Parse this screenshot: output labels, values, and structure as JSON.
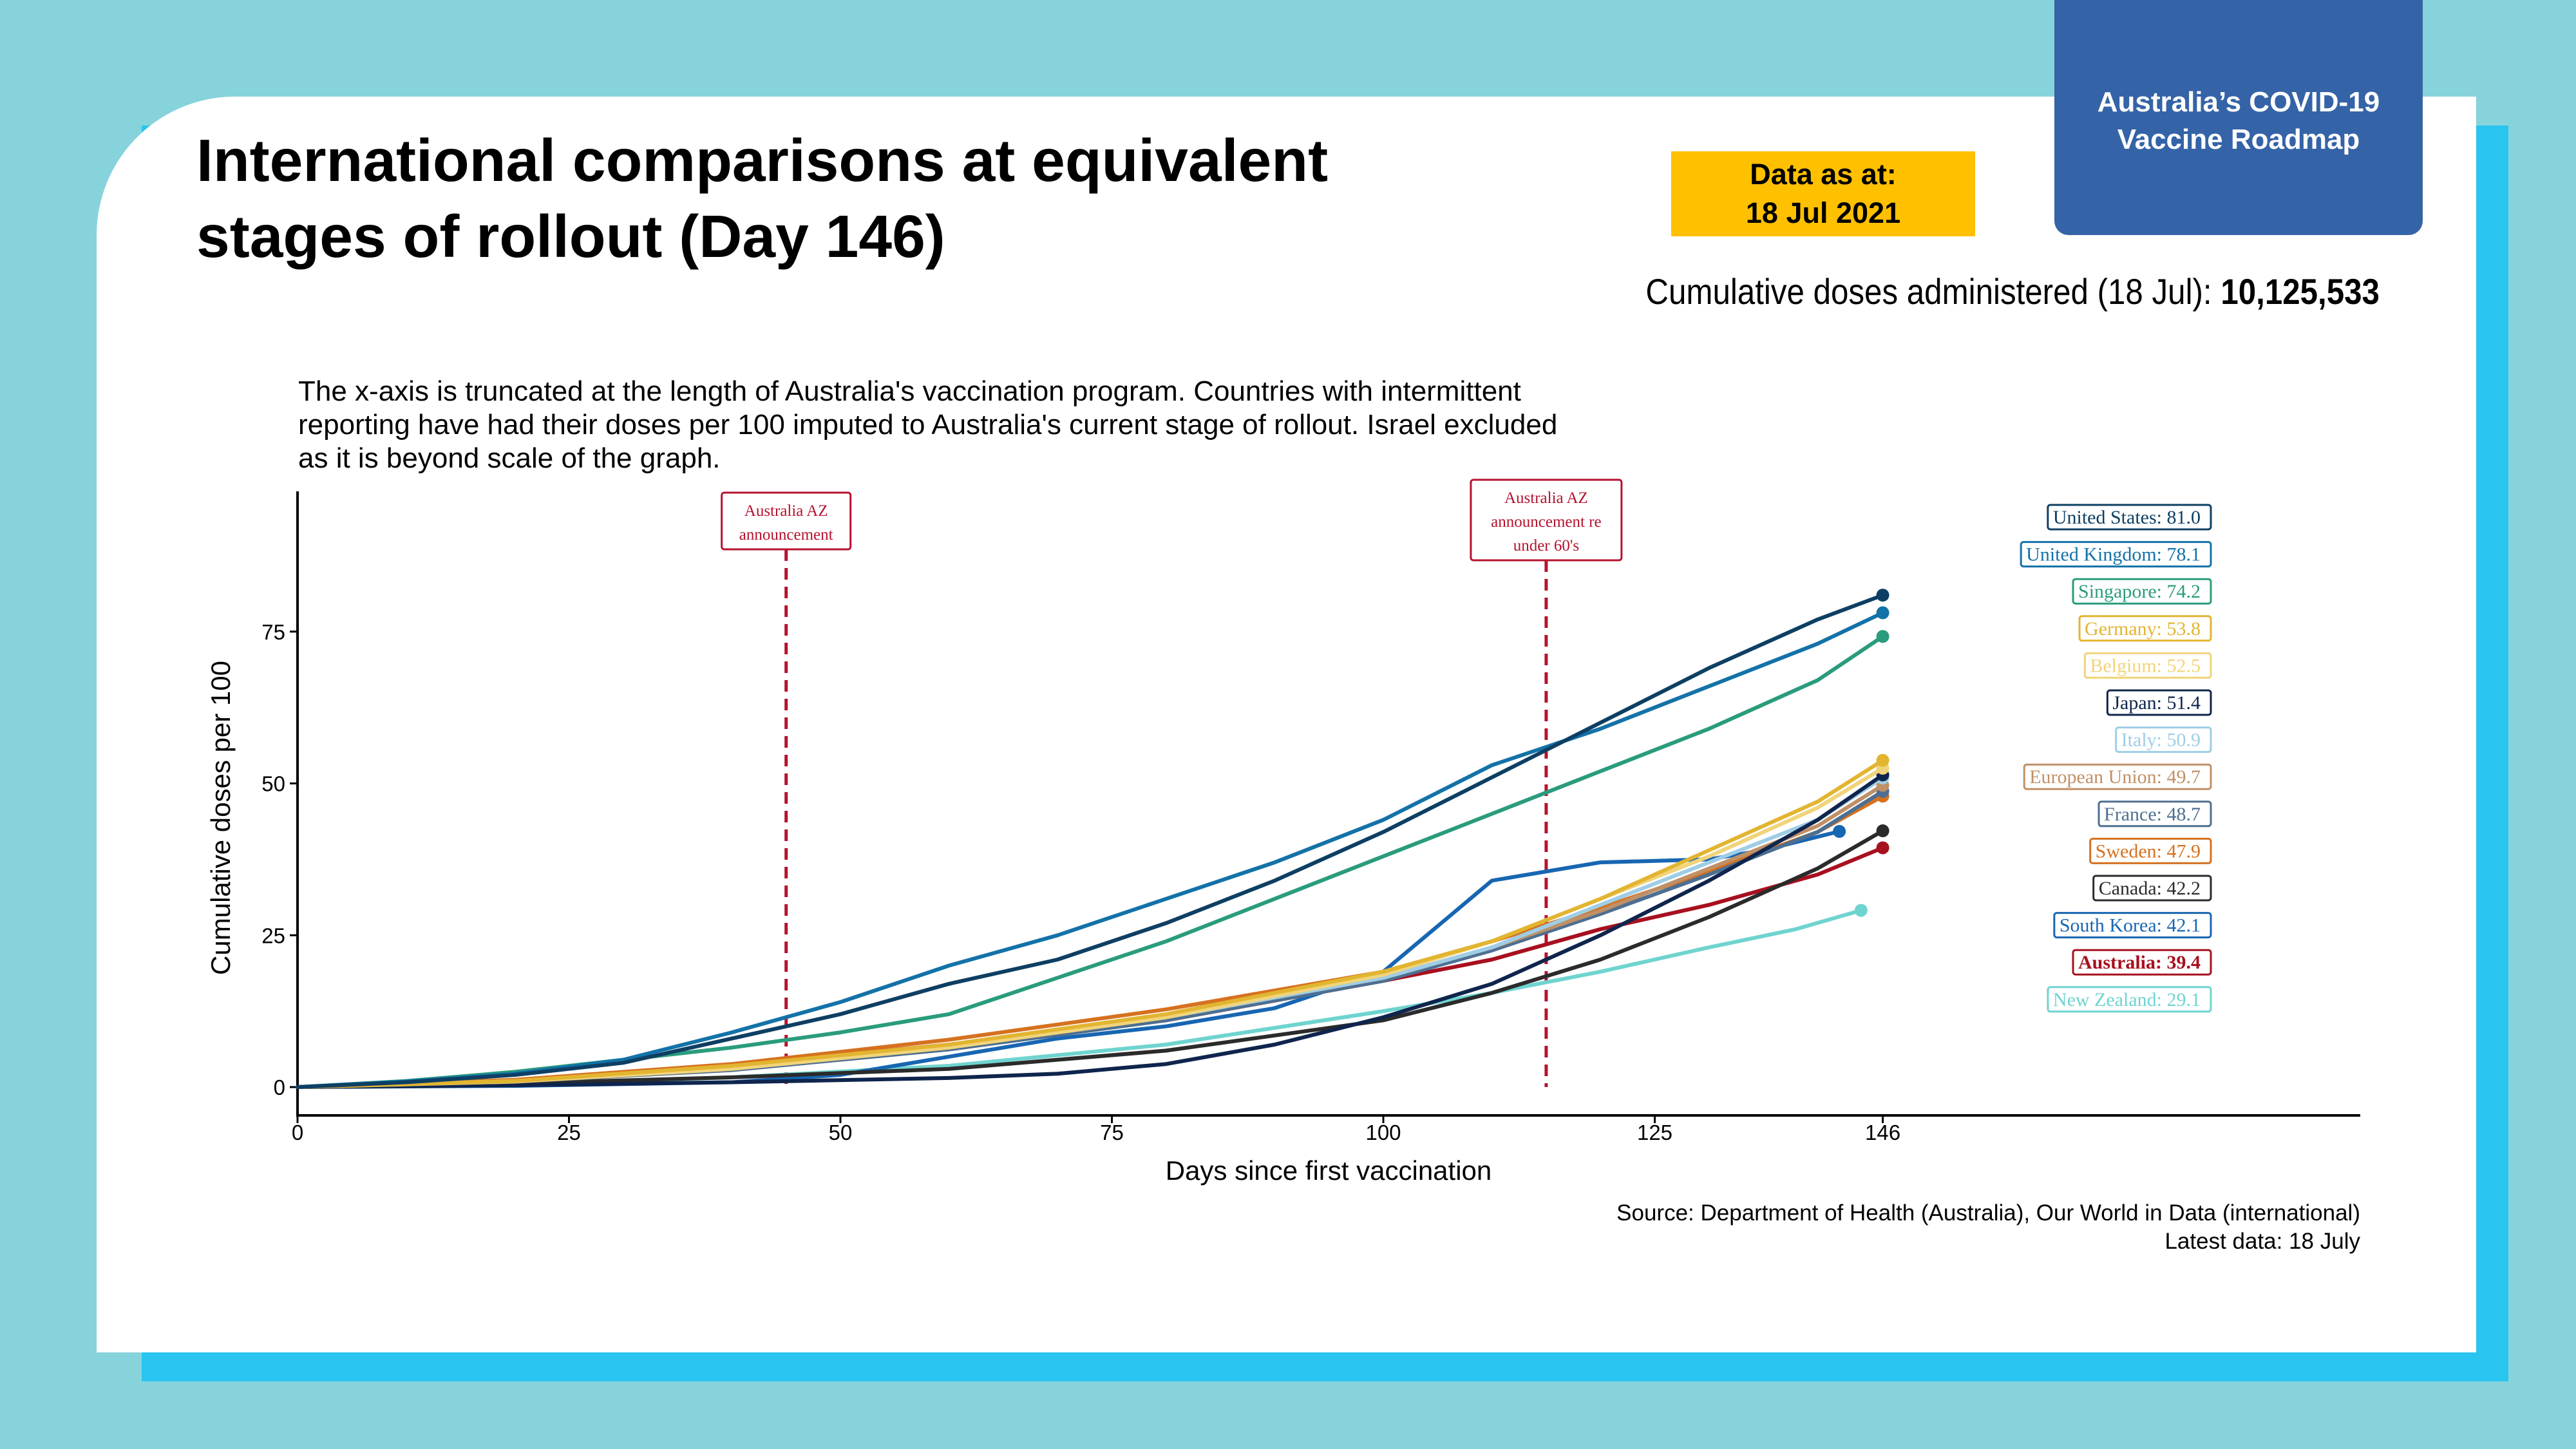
{
  "title_lines": [
    "International comparisons at equivalent",
    "stages of rollout (Day 146)"
  ],
  "brand": {
    "line1": "Australia’s COVID-19",
    "line2": "Vaccine Roadmap"
  },
  "date_box": {
    "line1": "Data as at:",
    "line2": "18 Jul 2021"
  },
  "cumulative": {
    "label": "Cumulative doses administered (18 Jul):",
    "value": "10,125,533"
  },
  "note_lines": [
    "The x-axis is truncated at the length of Australia's vaccination program. Countries with intermittent",
    "reporting have had their doses per 100 imputed to Australia's current stage of rollout. Israel excluded",
    "as it is beyond scale of the graph."
  ],
  "source_lines": [
    "Source: Department of Health (Australia), Our World in Data (international)",
    "Latest data: 18 July"
  ],
  "colors": {
    "accent_yellow": "#ffc000",
    "brand_blue": "#3563a7",
    "announcement_red": "#b5122e"
  },
  "chart_data": {
    "type": "line",
    "xlabel": "Days since first vaccination",
    "ylabel": "Cumulative doses per 100",
    "xlim": [
      0,
      190
    ],
    "ylim": [
      0,
      95
    ],
    "xticks": [
      0,
      25,
      50,
      75,
      100,
      125,
      146
    ],
    "yticks": [
      0,
      25,
      50,
      75
    ],
    "grid": false,
    "legend": "right",
    "annotations": [
      {
        "x": 45,
        "lines": [
          "Australia AZ",
          "announcement"
        ]
      },
      {
        "x": 115,
        "lines": [
          "Australia AZ",
          "announcement re",
          "under 60's"
        ]
      }
    ],
    "series": [
      {
        "name": "United States",
        "label": "United States: 81.0",
        "color": "#0e3f63",
        "bold": false,
        "points": [
          [
            0,
            0
          ],
          [
            10,
            0.8
          ],
          [
            20,
            2
          ],
          [
            30,
            4
          ],
          [
            40,
            8
          ],
          [
            50,
            12
          ],
          [
            60,
            17
          ],
          [
            70,
            21
          ],
          [
            80,
            27
          ],
          [
            90,
            34
          ],
          [
            100,
            42
          ],
          [
            110,
            51
          ],
          [
            120,
            60
          ],
          [
            130,
            69
          ],
          [
            140,
            77
          ],
          [
            146,
            81.0
          ]
        ]
      },
      {
        "name": "United Kingdom",
        "label": "United Kingdom: 78.1",
        "color": "#1372a8",
        "bold": false,
        "points": [
          [
            0,
            0
          ],
          [
            10,
            0.9
          ],
          [
            20,
            2.2
          ],
          [
            30,
            4.5
          ],
          [
            40,
            9
          ],
          [
            50,
            14
          ],
          [
            60,
            20
          ],
          [
            70,
            25
          ],
          [
            80,
            31
          ],
          [
            90,
            37
          ],
          [
            100,
            44
          ],
          [
            110,
            53
          ],
          [
            120,
            59
          ],
          [
            130,
            66
          ],
          [
            140,
            73
          ],
          [
            146,
            78.1
          ]
        ]
      },
      {
        "name": "Singapore",
        "label": "Singapore: 74.2",
        "color": "#2a9c7d",
        "bold": false,
        "points": [
          [
            0,
            0
          ],
          [
            10,
            1
          ],
          [
            20,
            2.5
          ],
          [
            30,
            4.5
          ],
          [
            40,
            6.5
          ],
          [
            50,
            9
          ],
          [
            60,
            12
          ],
          [
            70,
            18
          ],
          [
            80,
            24
          ],
          [
            90,
            31
          ],
          [
            100,
            38
          ],
          [
            110,
            45
          ],
          [
            120,
            52
          ],
          [
            130,
            59
          ],
          [
            140,
            67
          ],
          [
            146,
            74.2
          ]
        ]
      },
      {
        "name": "Germany",
        "label": "Germany: 53.8",
        "color": "#e2b531",
        "bold": false,
        "points": [
          [
            0,
            0
          ],
          [
            20,
            1
          ],
          [
            40,
            3.5
          ],
          [
            60,
            7
          ],
          [
            80,
            12
          ],
          [
            100,
            19
          ],
          [
            110,
            24
          ],
          [
            120,
            31
          ],
          [
            130,
            39
          ],
          [
            140,
            47
          ],
          [
            146,
            53.8
          ]
        ]
      },
      {
        "name": "Belgium",
        "label": "Belgium: 52.5",
        "color": "#f1d47a",
        "bold": false,
        "points": [
          [
            0,
            0
          ],
          [
            20,
            0.9
          ],
          [
            40,
            3
          ],
          [
            60,
            6.5
          ],
          [
            80,
            11.5
          ],
          [
            100,
            18.5
          ],
          [
            110,
            24
          ],
          [
            120,
            31
          ],
          [
            130,
            38
          ],
          [
            140,
            46
          ],
          [
            146,
            52.5
          ]
        ]
      },
      {
        "name": "Japan",
        "label": "Japan: 51.4",
        "color": "#0f254d",
        "bold": false,
        "points": [
          [
            0,
            0
          ],
          [
            20,
            0.3
          ],
          [
            40,
            0.8
          ],
          [
            60,
            1.5
          ],
          [
            70,
            2.2
          ],
          [
            80,
            3.8
          ],
          [
            90,
            7
          ],
          [
            100,
            11.5
          ],
          [
            110,
            17
          ],
          [
            120,
            25
          ],
          [
            130,
            34
          ],
          [
            140,
            44
          ],
          [
            146,
            51.4
          ]
        ]
      },
      {
        "name": "Italy",
        "label": "Italy: 50.9",
        "color": "#9fcde6",
        "bold": false,
        "points": [
          [
            0,
            0
          ],
          [
            20,
            1
          ],
          [
            40,
            3.2
          ],
          [
            60,
            6.8
          ],
          [
            80,
            11.5
          ],
          [
            100,
            18
          ],
          [
            110,
            23
          ],
          [
            120,
            30
          ],
          [
            130,
            37
          ],
          [
            140,
            44
          ],
          [
            146,
            50.9
          ]
        ]
      },
      {
        "name": "European Union",
        "label": "European Union: 49.7",
        "color": "#c09066",
        "bold": false,
        "points": [
          [
            0,
            0
          ],
          [
            20,
            1
          ],
          [
            40,
            3
          ],
          [
            60,
            6.5
          ],
          [
            80,
            11.5
          ],
          [
            100,
            18
          ],
          [
            110,
            23
          ],
          [
            120,
            29
          ],
          [
            130,
            36
          ],
          [
            140,
            43
          ],
          [
            146,
            49.7
          ]
        ]
      },
      {
        "name": "France",
        "label": "France: 48.7",
        "color": "#4d6f91",
        "bold": false,
        "points": [
          [
            0,
            0
          ],
          [
            20,
            0.9
          ],
          [
            40,
            2.8
          ],
          [
            60,
            6.2
          ],
          [
            80,
            11
          ],
          [
            100,
            17.5
          ],
          [
            110,
            22.5
          ],
          [
            120,
            28.5
          ],
          [
            130,
            35
          ],
          [
            140,
            42
          ],
          [
            146,
            48.7
          ]
        ]
      },
      {
        "name": "Sweden",
        "label": "Sweden: 47.9",
        "color": "#d6711f",
        "bold": false,
        "points": [
          [
            0,
            0
          ],
          [
            20,
            1.2
          ],
          [
            40,
            3.8
          ],
          [
            60,
            7.8
          ],
          [
            80,
            12.8
          ],
          [
            100,
            19
          ],
          [
            110,
            24
          ],
          [
            120,
            29.5
          ],
          [
            130,
            35.5
          ],
          [
            140,
            42
          ],
          [
            146,
            47.9
          ]
        ]
      },
      {
        "name": "Canada",
        "label": "Canada: 42.2",
        "color": "#2b2b2b",
        "bold": false,
        "points": [
          [
            0,
            0
          ],
          [
            20,
            0.6
          ],
          [
            40,
            1.6
          ],
          [
            60,
            3
          ],
          [
            80,
            6
          ],
          [
            100,
            11
          ],
          [
            110,
            15.5
          ],
          [
            120,
            21
          ],
          [
            130,
            28
          ],
          [
            140,
            36
          ],
          [
            146,
            42.2
          ]
        ]
      },
      {
        "name": "South Korea",
        "label": "South Korea: 42.1",
        "color": "#1766b2",
        "bold": false,
        "points": [
          [
            0,
            0
          ],
          [
            20,
            0.2
          ],
          [
            40,
            0.8
          ],
          [
            50,
            2
          ],
          [
            60,
            5
          ],
          [
            70,
            8
          ],
          [
            80,
            10
          ],
          [
            90,
            13
          ],
          [
            95,
            16
          ],
          [
            100,
            19
          ],
          [
            104,
            25
          ],
          [
            106,
            28
          ],
          [
            110,
            34
          ],
          [
            120,
            37
          ],
          [
            130,
            37.5
          ],
          [
            135,
            39
          ],
          [
            142,
            42.1
          ]
        ]
      },
      {
        "name": "Australia",
        "label": "Australia: 39.4",
        "color": "#a8101f",
        "bold": true,
        "points": [
          [
            0,
            0
          ],
          [
            20,
            1
          ],
          [
            40,
            3.6
          ],
          [
            60,
            7
          ],
          [
            80,
            11
          ],
          [
            100,
            17.5
          ],
          [
            110,
            21
          ],
          [
            120,
            26
          ],
          [
            130,
            30
          ],
          [
            140,
            35
          ],
          [
            146,
            39.4
          ]
        ]
      },
      {
        "name": "New Zealand",
        "label": "New Zealand: 29.1",
        "color": "#6fd4d0",
        "bold": false,
        "points": [
          [
            0,
            0
          ],
          [
            20,
            0.4
          ],
          [
            40,
            1.6
          ],
          [
            60,
            3.5
          ],
          [
            80,
            7
          ],
          [
            100,
            12.5
          ],
          [
            110,
            15.5
          ],
          [
            120,
            19
          ],
          [
            130,
            23
          ],
          [
            138,
            26
          ],
          [
            144,
            29.1
          ]
        ]
      }
    ]
  }
}
